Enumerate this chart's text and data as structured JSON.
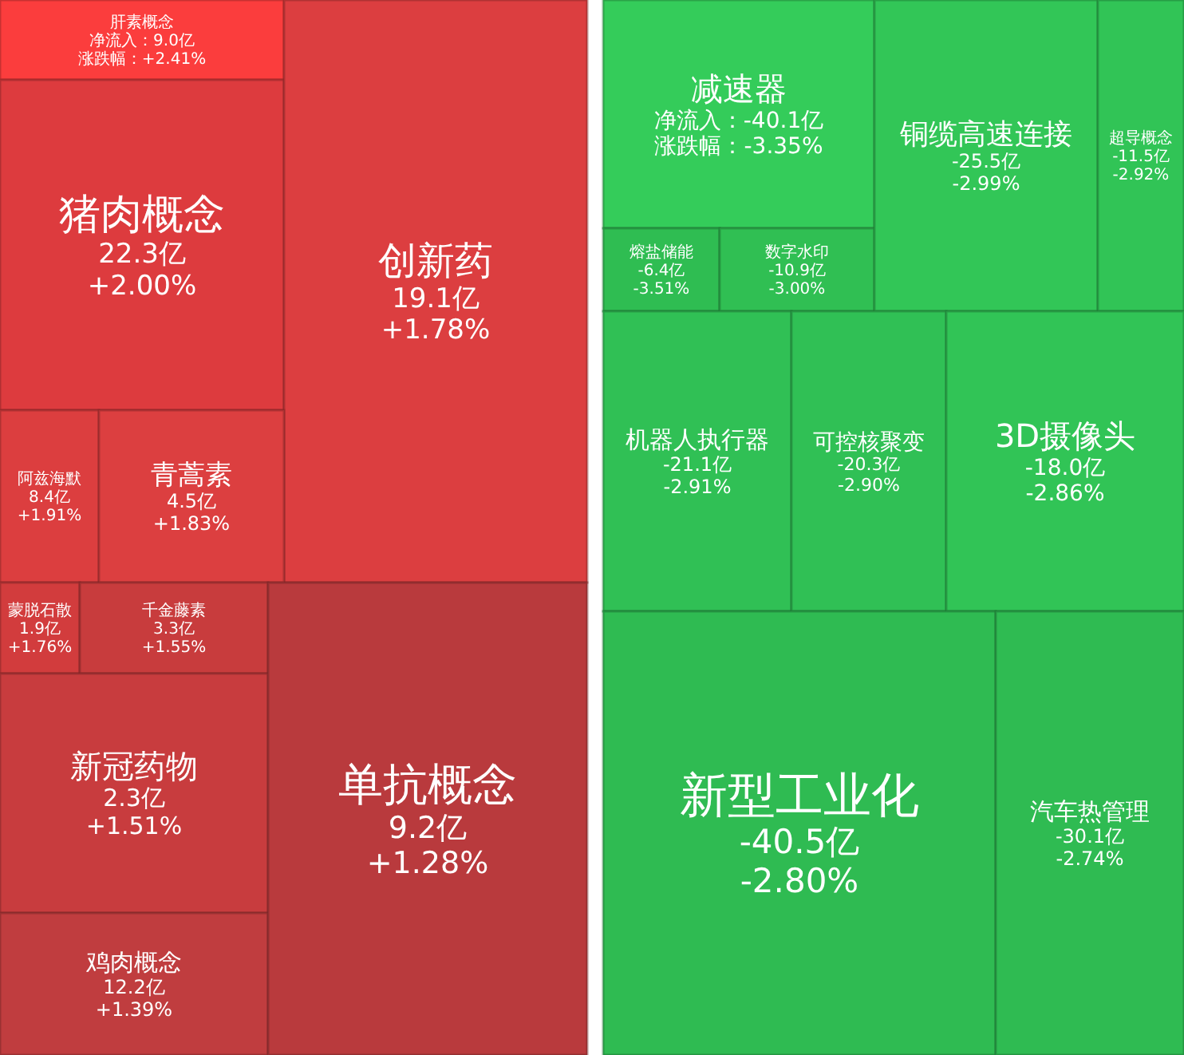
{
  "chart_data": [
    {
      "type": "other",
      "categories": [
        "肝素概念",
        "猪肉概念",
        "创新药",
        "阿兹海默",
        "青蒿素",
        "蒙脱石散",
        "千金藤素",
        "新冠药物",
        "鸡肉概念",
        "单抗概念"
      ],
      "series": [
        {
          "name": "净流入：",
          "colors": [
            "#fb3d3d",
            "#dd3b3e",
            "#dc3e40",
            "#dc3e3f",
            "#dc3f40",
            "#d23c3d",
            "#c83c3d",
            "#c83c3e",
            "#c03d3f",
            "#b93a3d"
          ],
          "values": [
            9.0,
            22.3,
            19.1,
            8.4,
            4.5,
            1.9,
            3.3,
            2.3,
            12.2,
            9.2
          ],
          "value_labels": [
            "9.0亿",
            "22.3亿",
            "19.1亿",
            "8.4亿",
            "4.5亿",
            "1.9亿",
            "3.3亿",
            "2.3亿",
            "12.2亿",
            "9.2亿"
          ]
        },
        {
          "name": "涨跌幅：",
          "values": [
            2.41,
            2.0,
            1.78,
            1.91,
            1.83,
            1.76,
            1.55,
            1.51,
            1.39,
            1.28
          ],
          "value_labels": [
            "+2.41%",
            "+2.00%",
            "+1.78%",
            "+1.91%",
            "+1.83%",
            "+1.76%",
            "+1.55%",
            "+1.51%",
            "+1.39%",
            "+1.28%"
          ]
        }
      ]
    },
    {
      "type": "other",
      "categories": [
        "减速器",
        "熔盐储能",
        "数字水印",
        "铜缆高速连接",
        "超导概念",
        "机器人执行器",
        "可控核聚变",
        "3D摄像头",
        "新型工业化",
        "汽车热管理"
      ],
      "series": [
        {
          "name": "净流入：",
          "colors": [
            "#34cc5a",
            "#2fbd52",
            "#30bf53",
            "#32c657",
            "#31c456",
            "#30c055",
            "#30c055",
            "#31c456",
            "#2fbb52",
            "#2fbb52"
          ],
          "values": [
            -40.1,
            -6.4,
            -10.9,
            -25.5,
            -11.5,
            -21.1,
            -20.3,
            -18.0,
            -40.5,
            -30.1
          ],
          "value_labels": [
            "-40.1亿",
            "-6.4亿",
            "-10.9亿",
            "-25.5亿",
            "-11.5亿",
            "-21.1亿",
            "-20.3亿",
            "-18.0亿",
            "-40.5亿",
            "-30.1亿"
          ]
        },
        {
          "name": "涨跌幅：",
          "values": [
            -3.35,
            -3.51,
            -3.0,
            -2.99,
            -2.92,
            -2.91,
            -2.9,
            -2.86,
            -2.8,
            -2.74
          ],
          "value_labels": [
            "-3.35%",
            "-3.51%",
            "-3.00%",
            "-2.99%",
            "-2.92%",
            "-2.91%",
            "-2.90%",
            "-2.86%",
            "-2.80%",
            "-2.74%"
          ]
        }
      ]
    }
  ]
}
